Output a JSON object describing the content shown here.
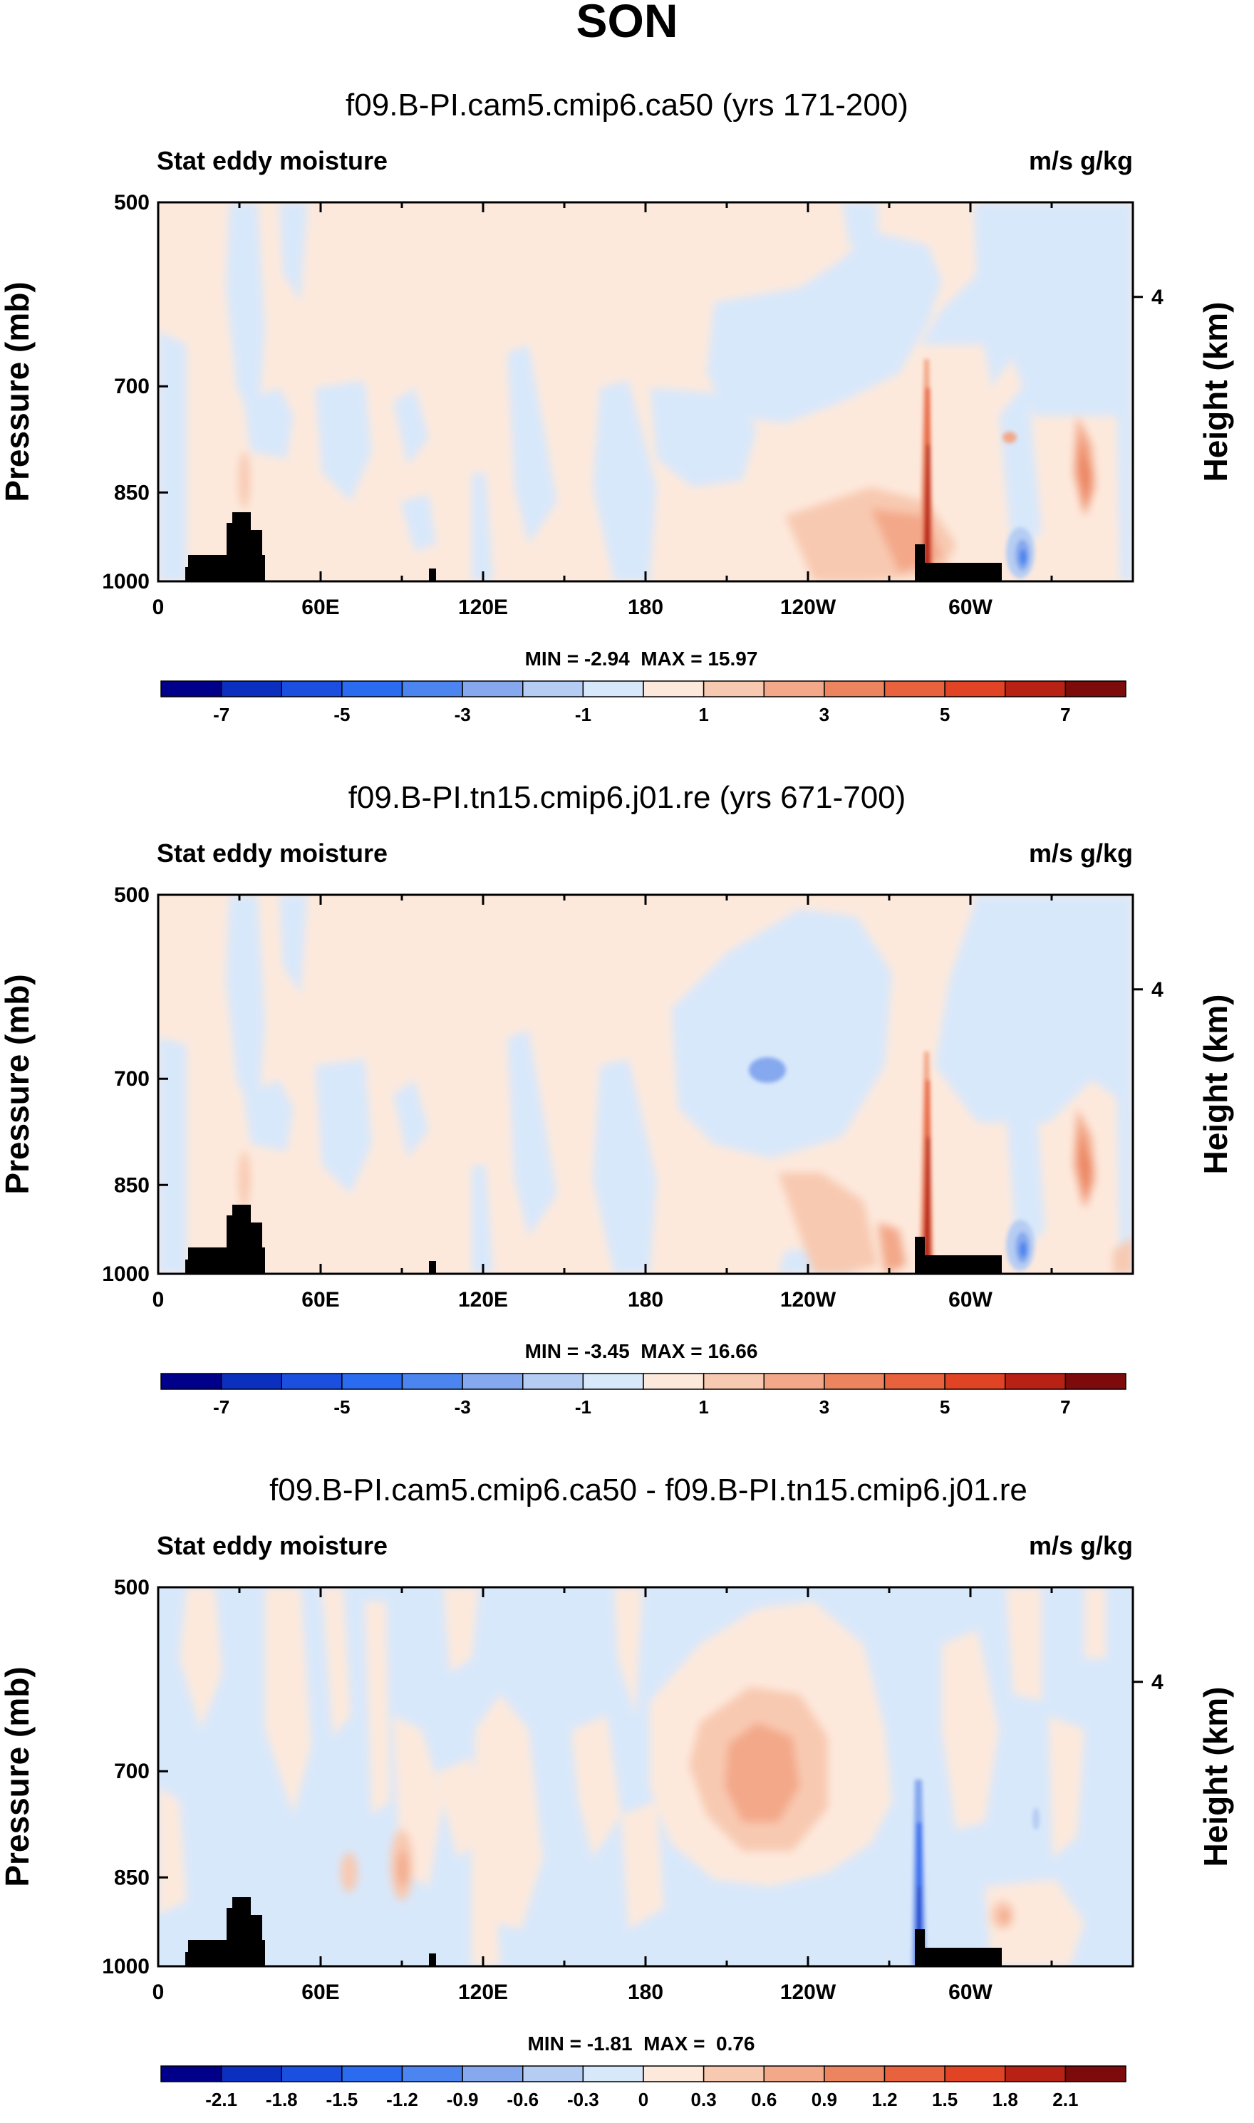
{
  "figure_title": "SON",
  "chart_data": [
    {
      "type": "contour",
      "title": "f09.B-PI.cam5.cmip6.ca50 (yrs 171-200)",
      "left_label": "Stat eddy moisture",
      "right_label": "m/s g/kg",
      "ylabel": "Pressure (mb)",
      "y2label": "Height (km)",
      "yticks": [
        "500",
        "700",
        "850",
        "1000"
      ],
      "y2ticks": [
        "4"
      ],
      "xticks": [
        "0",
        "60E",
        "120E",
        "180",
        "120W",
        "60W"
      ],
      "stats": "MIN = -2.94  MAX = 15.97",
      "colorbar_ticks": [
        "-7",
        "-5",
        "-3",
        "-1",
        "1",
        "3",
        "5",
        "7"
      ],
      "colorbar_colors": [
        "#00008b",
        "#0b2fbf",
        "#1a4fe0",
        "#2a6bf0",
        "#4d85f0",
        "#85a8ee",
        "#b6cdf3",
        "#d8e8fb",
        "#fde9dc",
        "#f8c9b1",
        "#f3a889",
        "#ec8460",
        "#e8633d",
        "#e04424",
        "#b82214",
        "#7d0b0b"
      ]
    },
    {
      "type": "contour",
      "title": "f09.B-PI.tn15.cmip6.j01.re (yrs 671-700)",
      "left_label": "Stat eddy moisture",
      "right_label": "m/s g/kg",
      "ylabel": "Pressure (mb)",
      "y2label": "Height (km)",
      "yticks": [
        "500",
        "700",
        "850",
        "1000"
      ],
      "y2ticks": [
        "4"
      ],
      "xticks": [
        "0",
        "60E",
        "120E",
        "180",
        "120W",
        "60W"
      ],
      "stats": "MIN = -3.45  MAX = 16.66",
      "colorbar_ticks": [
        "-7",
        "-5",
        "-3",
        "-1",
        "1",
        "3",
        "5",
        "7"
      ],
      "colorbar_colors": [
        "#00008b",
        "#0b2fbf",
        "#1a4fe0",
        "#2a6bf0",
        "#4d85f0",
        "#85a8ee",
        "#b6cdf3",
        "#d8e8fb",
        "#fde9dc",
        "#f8c9b1",
        "#f3a889",
        "#ec8460",
        "#e8633d",
        "#e04424",
        "#b82214",
        "#7d0b0b"
      ]
    },
    {
      "type": "contour",
      "title": "f09.B-PI.cam5.cmip6.ca50 - f09.B-PI.tn15.cmip6.j01.re",
      "left_label": "Stat eddy moisture",
      "right_label": "m/s g/kg",
      "ylabel": "Pressure (mb)",
      "y2label": "Height (km)",
      "yticks": [
        "500",
        "700",
        "850",
        "1000"
      ],
      "y2ticks": [
        "4"
      ],
      "xticks": [
        "0",
        "60E",
        "120E",
        "180",
        "120W",
        "60W"
      ],
      "stats": "MIN = -1.81  MAX =  0.76",
      "colorbar_ticks": [
        "-2.1",
        "-1.8",
        "-1.5",
        "-1.2",
        "-0.9",
        "-0.6",
        "-0.3",
        "0",
        "0.3",
        "0.6",
        "0.9",
        "1.2",
        "1.5",
        "1.8",
        "2.1"
      ],
      "colorbar_colors": [
        "#00008b",
        "#0b2fbf",
        "#1a4fe0",
        "#2a6bf0",
        "#4d85f0",
        "#85a8ee",
        "#b6cdf3",
        "#d8e8fb",
        "#fde9dc",
        "#f8c9b1",
        "#f3a889",
        "#ec8460",
        "#e8633d",
        "#e04424",
        "#b82214",
        "#7d0b0b"
      ]
    }
  ]
}
